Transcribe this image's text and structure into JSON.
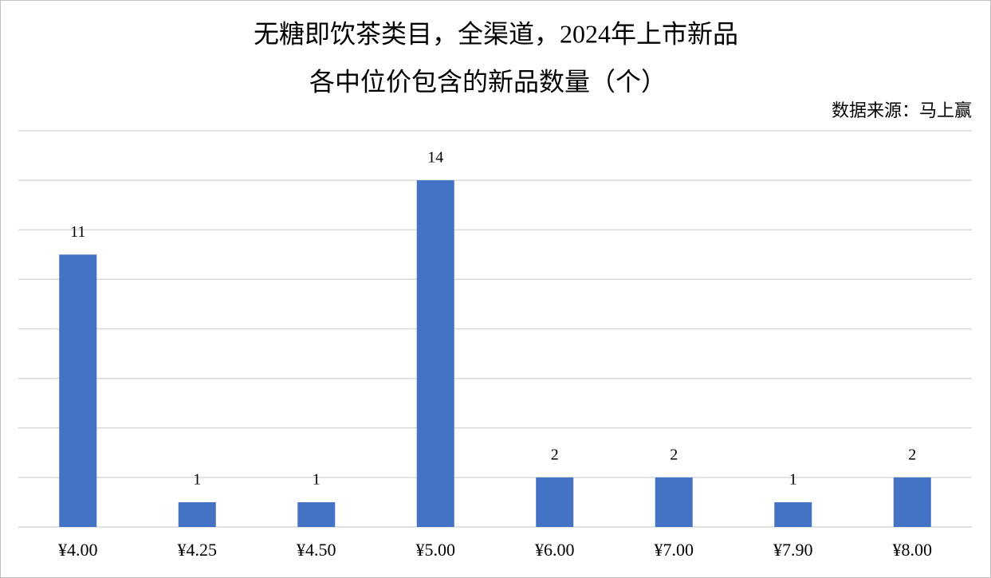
{
  "chart_data": {
    "type": "bar",
    "title": [
      "无糖即饮茶类目，全渠道，2024年上市新品",
      "各中位价包含的新品数量（个）"
    ],
    "source": "数据来源：马上赢",
    "categories": [
      "¥4.00",
      "¥4.25",
      "¥4.50",
      "¥5.00",
      "¥6.00",
      "¥7.00",
      "¥7.90",
      "¥8.00"
    ],
    "values": [
      11,
      1,
      1,
      14,
      2,
      2,
      1,
      2
    ],
    "color": "#4472c4",
    "ylim": [
      0,
      16
    ],
    "yticks": [
      0,
      2,
      4,
      6,
      8,
      10,
      12,
      14,
      16
    ],
    "grid": true,
    "show_y_tick_labels": false,
    "data_labels": true
  }
}
